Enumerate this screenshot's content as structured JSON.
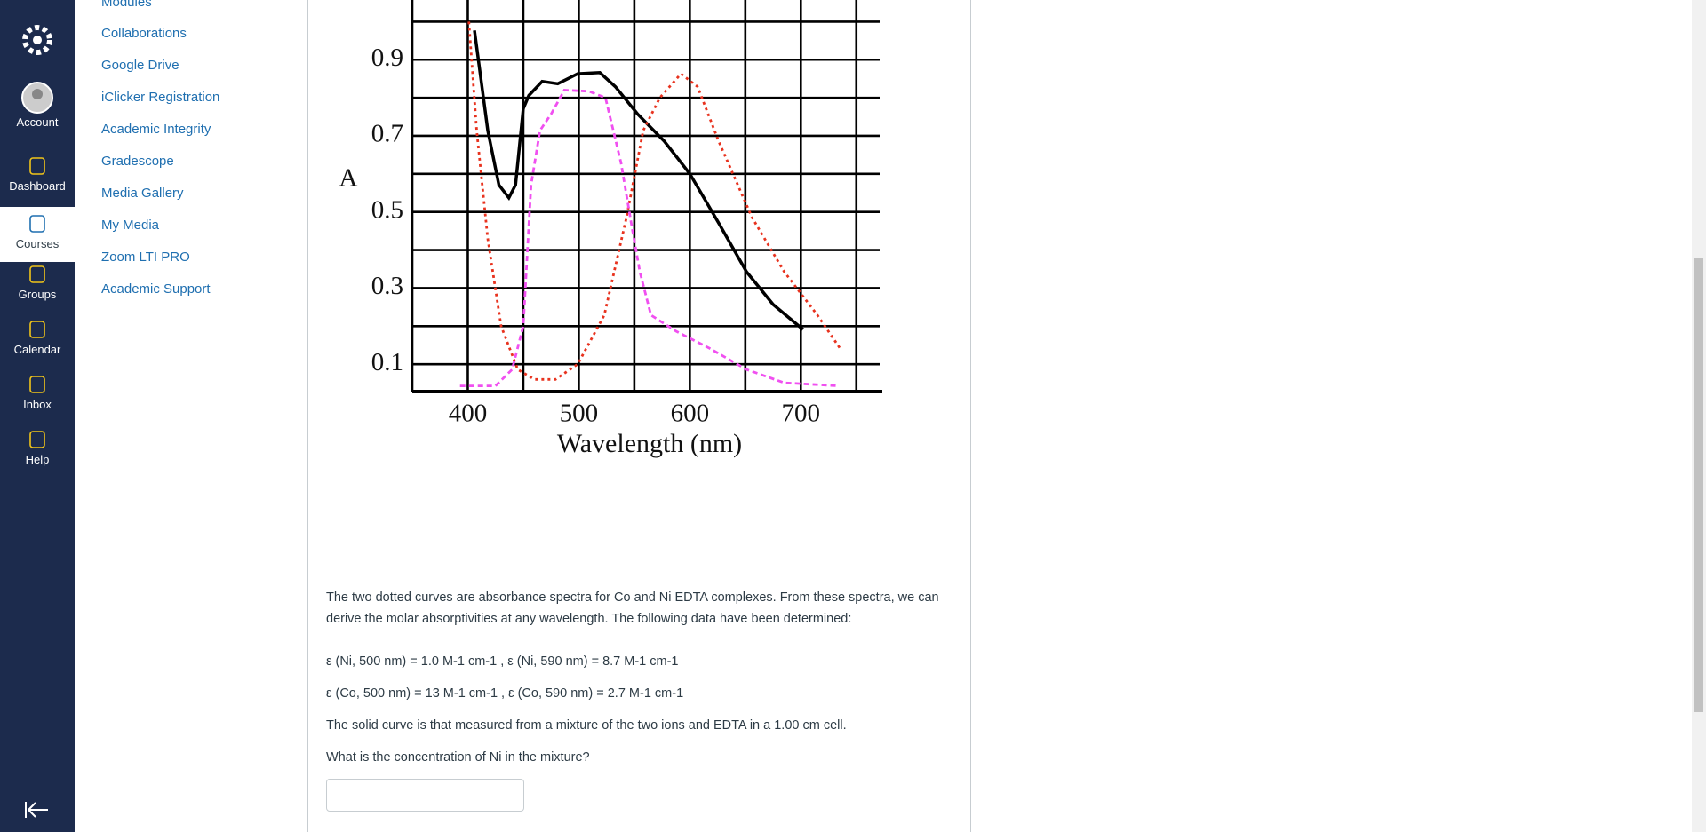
{
  "global_nav": {
    "items": [
      "Account",
      "Dashboard",
      "Courses",
      "Groups",
      "Calendar",
      "Inbox",
      "Help"
    ]
  },
  "course_nav": {
    "items": [
      "Modules",
      "Collaborations",
      "Google Drive",
      "iClicker Registration",
      "Academic Integrity",
      "Gradescope",
      "Media Gallery",
      "My Media",
      "Zoom LTI PRO",
      "Academic Support"
    ]
  },
  "figure": {
    "type": "line",
    "xlabel": "Wavelength (nm)",
    "ylabel": "A",
    "xlim": [
      350,
      771
    ],
    "ylim": [
      0.028,
      1.0
    ],
    "xticks": [
      400,
      500,
      600,
      700
    ],
    "yticks": [
      0.1,
      0.3,
      0.5,
      0.7,
      0.9
    ],
    "grid": true,
    "series": [
      {
        "color": "#000000",
        "style": "solid",
        "x": [
          406,
          418,
          428,
          437,
          443,
          450,
          455,
          467,
          481,
          499,
          519,
          533,
          553,
          577,
          600,
          626,
          651,
          675,
          702
        ],
        "y": [
          0.977,
          0.714,
          0.571,
          0.537,
          0.571,
          0.771,
          0.806,
          0.843,
          0.837,
          0.863,
          0.866,
          0.829,
          0.757,
          0.686,
          0.6,
          0.471,
          0.343,
          0.257,
          0.191
        ]
      },
      {
        "color": "#e8321e",
        "style": "dotted",
        "x": [
          401,
          408,
          418,
          430,
          445,
          460,
          479,
          499,
          523,
          543,
          558,
          573,
          592,
          607,
          626,
          656,
          685,
          715,
          735
        ],
        "y": [
          1.0,
          0.714,
          0.429,
          0.2,
          0.086,
          0.06,
          0.06,
          0.1,
          0.229,
          0.486,
          0.714,
          0.8,
          0.863,
          0.829,
          0.686,
          0.486,
          0.343,
          0.229,
          0.143
        ]
      },
      {
        "color": "#f050f0",
        "style": "dashed",
        "x": [
          393,
          425,
          440,
          450,
          457,
          465,
          475,
          487,
          509,
          524,
          538,
          548,
          555,
          565,
          588,
          617,
          651,
          685,
          734
        ],
        "y": [
          0.043,
          0.043,
          0.086,
          0.2,
          0.571,
          0.714,
          0.757,
          0.82,
          0.817,
          0.8,
          0.629,
          0.457,
          0.343,
          0.229,
          0.186,
          0.143,
          0.086,
          0.051,
          0.043
        ]
      }
    ]
  },
  "question": {
    "paragraphs": [
      "The two dotted curves are absorbance spectra for Co and Ni EDTA complexes. From these spectra, we can derive the molar absorptivities at any wavelength. The following data have been determined:",
      "ε (Ni, 500 nm) = 1.0 M-1 cm-1 , ε (Ni, 590 nm) = 8.7 M-1 cm-1",
      "ε (Co, 500 nm) = 13 M-1 cm-1 , ε (Co, 590 nm) = 2.7 M-1 cm-1",
      "The solid curve is that measured from a mixture of the two ions and EDTA in a 1.00 cm cell.",
      "What is the concentration of Ni  in the mixture?"
    ]
  }
}
